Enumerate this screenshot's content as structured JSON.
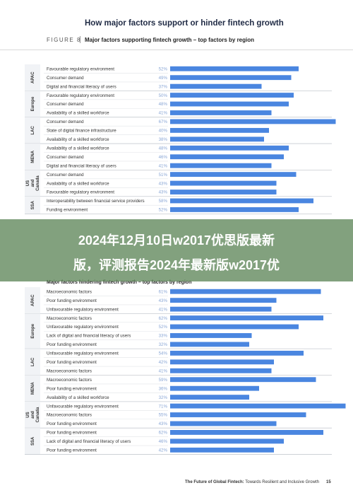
{
  "header": {
    "title": "How major factors support or hinder fintech growth",
    "figure_label": "FIGURE 8",
    "figure_title": "Major factors supporting fintech growth – top factors by region"
  },
  "sections": {
    "hinder_heading": "Major factors hindering fintech growth – top factors by region"
  },
  "banner": {
    "line1": "2024年12月10日w2017优思版最新",
    "line2": "版，评测报告2024年最新版w2017优"
  },
  "footer": {
    "text_bold": "The Future of Global Fintech:",
    "text_rest": " Towards Resilient and Inclusive Growth",
    "page_number": "15"
  },
  "colors": {
    "bar": "#4a86e0",
    "value_text": "#8aa7d6",
    "region_band": "#f1f3f6",
    "separator": "#c7cbd1"
  },
  "chart_data": [
    {
      "type": "bar",
      "orientation": "horizontal",
      "title": "Major factors supporting fintech growth – top factors by region",
      "unit": "%",
      "groups": [
        {
          "region": "APAC",
          "factors": [
            "Favourable regulatory environment",
            "Consumer demand",
            "Digital and financial literacy of users"
          ],
          "values": [
            52,
            49,
            37
          ]
        },
        {
          "region": "Europe",
          "factors": [
            "Favourable regulatory environment",
            "Consumer demand",
            "Availability of a skilled workforce"
          ],
          "values": [
            50,
            48,
            41
          ]
        },
        {
          "region": "LAC",
          "factors": [
            "Consumer demand",
            "State of digital finance infrastructure",
            "Availability of a skilled workforce"
          ],
          "values": [
            67,
            40,
            38
          ]
        },
        {
          "region": "MENA",
          "factors": [
            "Availability of a skilled workforce",
            "Consumer demand",
            "Digital and financial literacy of users"
          ],
          "values": [
            48,
            46,
            41
          ]
        },
        {
          "region": "US and Canada",
          "factors": [
            "Consumer demand",
            "Availability of a skilled workforce",
            "Favourable regulatory environment"
          ],
          "values": [
            51,
            43,
            43
          ]
        },
        {
          "region": "SSA",
          "factors": [
            "Interoperability between financial service providers",
            "Funding environment"
          ],
          "values": [
            58,
            52
          ]
        }
      ]
    },
    {
      "type": "bar",
      "orientation": "horizontal",
      "title": "Major factors hindering fintech growth – top factors by region",
      "unit": "%",
      "groups": [
        {
          "region": "APAC",
          "factors": [
            "Macroeconomic factors",
            "Poor funding environment",
            "Unfavourable regulatory environment"
          ],
          "values": [
            61,
            43,
            41
          ]
        },
        {
          "region": "Europe",
          "factors": [
            "Macroeconomic factors",
            "Unfavourable regulatory environment",
            "Lack of digital and financial literacy of users",
            "Poor funding environment"
          ],
          "values": [
            62,
            52,
            33,
            32
          ]
        },
        {
          "region": "LAC",
          "factors": [
            "Unfavourable regulatory environment",
            "Poor funding environment",
            "Macroeconomic factors"
          ],
          "values": [
            54,
            42,
            41
          ]
        },
        {
          "region": "MENA",
          "factors": [
            "Macroeconomic factors",
            "Poor funding environment",
            "Availability of a skilled workforce"
          ],
          "values": [
            59,
            36,
            32
          ]
        },
        {
          "region": "US and Canada",
          "factors": [
            "Unfavourable regulatory environment",
            "Macroeconomic factors",
            "Poor funding environment"
          ],
          "values": [
            71,
            55,
            43
          ]
        },
        {
          "region": "SSA",
          "factors": [
            "Poor funding environment",
            "Lack of digital and financial literacy of users",
            "Poor funding environment"
          ],
          "values": [
            62,
            46,
            42
          ]
        }
      ]
    }
  ]
}
